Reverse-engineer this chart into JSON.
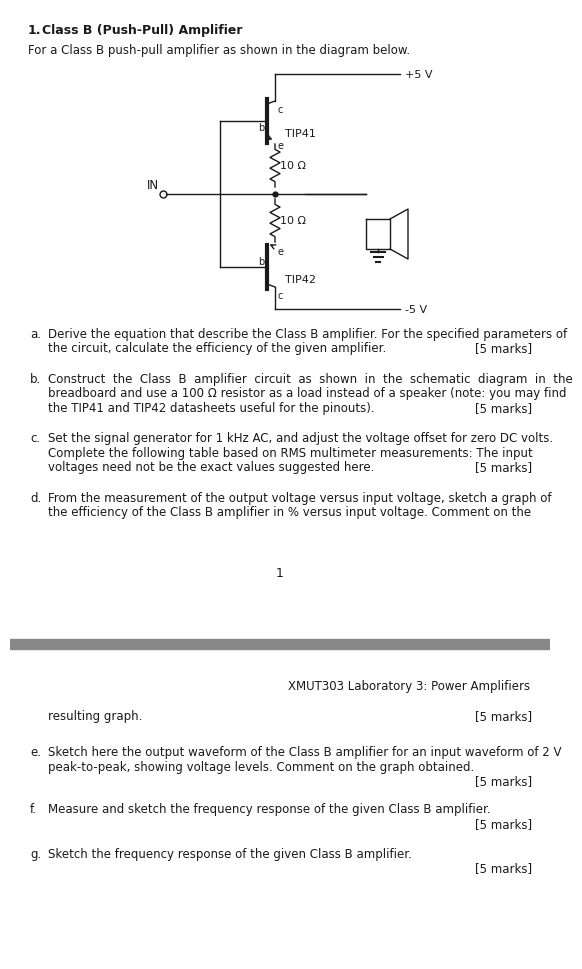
{
  "title_num": "1.",
  "title_text": "Class B (Push-Pull) Amplifier",
  "intro_text": "For a Class B push-pull amplifier as shown in the diagram below.",
  "vcc_label": "+5 V",
  "vee_label": "-5 V",
  "in_label": "IN",
  "tip41_label": "TIP41",
  "tip42_label": "TIP42",
  "r1_label": "10 Ω",
  "r2_label": "10 Ω",
  "qa_letter": "a.",
  "qa_text1": "Derive the equation that describe the Class B amplifier. For the specified parameters of",
  "qa_text2": "the circuit, calculate the efficiency of the given amplifier.",
  "qa_marks": "[5 marks]",
  "qb_letter": "b.",
  "qb_text1": "Construct  the  Class  B  amplifier  circuit  as  shown  in  the  schematic  diagram  in  the",
  "qb_text2": "breadboard and use a 100 Ω resistor as a load instead of a speaker (note: you may find",
  "qb_text3": "the TIP41 and TIP42 datasheets useful for the pinouts).",
  "qb_marks": "[5 marks]",
  "qc_letter": "c.",
  "qc_text1": "Set the signal generator for 1 kHz AC, and adjust the voltage offset for zero DC volts.",
  "qc_text2": "Complete the following table based on RMS multimeter measurements: The input",
  "qc_text3": "voltages need not be the exact values suggested here.",
  "qc_marks": "[5 marks]",
  "qd_letter": "d.",
  "qd_text1": "From the measurement of the output voltage versus input voltage, sketch a graph of",
  "qd_text2": "the efficiency of the Class B amplifier in % versus input voltage. Comment on the",
  "page_number": "1",
  "footer_text": "XMUT303 Laboratory 3: Power Amplifiers",
  "res_text": "resulting graph.",
  "res_marks": "[5 marks]",
  "qe_letter": "e.",
  "qe_text1": "Sketch here the output waveform of the Class B amplifier for an input waveform of 2 V",
  "qe_text2": "peak-to-peak, showing voltage levels. Comment on the graph obtained.",
  "qe_marks": "[5 marks]",
  "qf_letter": "f.",
  "qf_text": "Measure and sketch the frequency response of the given Class B amplifier.",
  "qf_marks": "[5 marks]",
  "qg_letter": "g.",
  "qg_text": "Sketch the frequency response of the given Class B amplifier.",
  "qg_marks": "[5 marks]",
  "bg_color": "#ffffff",
  "text_color": "#1a1a1a",
  "divider_color": "#888888"
}
